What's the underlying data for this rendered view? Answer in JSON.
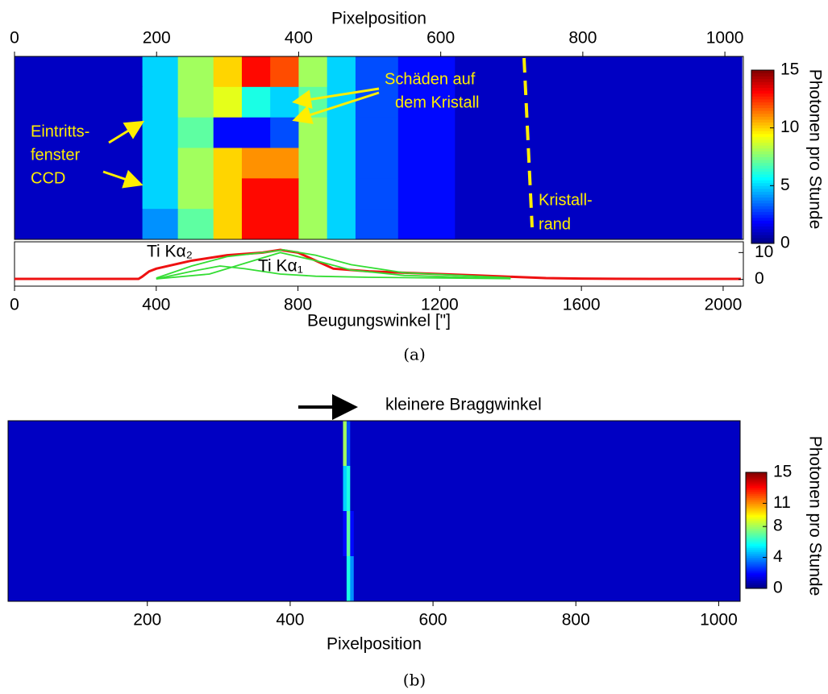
{
  "chart_data": [
    {
      "type": "heatmap",
      "xlabel": "Pixelposition",
      "xlim": [
        0,
        1026
      ],
      "xticks": [
        0,
        200,
        400,
        600,
        800,
        1000
      ],
      "xbins": [
        0,
        180,
        230,
        280,
        320,
        360,
        400,
        440,
        480,
        540,
        620,
        1024
      ],
      "z": [
        [
          1,
          5,
          8,
          10,
          13,
          12,
          8,
          5,
          3,
          2,
          1
        ],
        [
          1,
          5,
          8,
          9,
          6,
          5,
          7,
          5,
          3,
          2,
          1
        ],
        [
          1,
          5,
          7,
          2,
          2,
          3,
          8,
          5,
          3,
          2,
          1
        ],
        [
          1,
          5,
          8,
          10,
          11,
          11,
          8,
          5,
          3,
          2,
          1
        ],
        [
          1,
          5,
          8,
          10,
          13,
          13,
          8,
          5,
          3,
          2,
          1
        ],
        [
          1,
          4,
          7,
          10,
          13,
          13,
          8,
          5,
          3,
          2,
          1
        ]
      ],
      "colorbar": {
        "label": "Photonen pro Stunde",
        "colormap": "jet",
        "lim": [
          0,
          15
        ],
        "ticks": [
          0,
          5,
          10,
          15
        ]
      },
      "annotations": {
        "damage": [
          "Schäden auf",
          "dem Kristall"
        ],
        "window": [
          "Eintritts-",
          "fenster",
          "CCD"
        ],
        "edge": [
          "Kristall-",
          "rand"
        ]
      }
    },
    {
      "type": "line",
      "xlabel": "Beugungswinkel [\"]",
      "xlim": [
        0,
        2057
      ],
      "xticks": [
        0,
        400,
        800,
        1200,
        1600,
        2000
      ],
      "ylim": [
        -2.5,
        14
      ],
      "yticks": [
        0,
        10
      ],
      "series": [
        {
          "color": "#ee1111",
          "x": [
            0,
            350,
            360,
            380,
            400,
            500,
            600,
            700,
            750,
            800,
            850,
            900,
            1000,
            1100,
            1200,
            1300,
            1400,
            1500,
            1600,
            1800,
            2000,
            2050
          ],
          "y": [
            0.2,
            0.2,
            1,
            3,
            4,
            7,
            9,
            10,
            11,
            10,
            7,
            4,
            3,
            2.5,
            2,
            1.5,
            1,
            0.5,
            0.3,
            0.2,
            0.2,
            0.2
          ]
        },
        {
          "name": "Ti Kα₂",
          "color": "#33dd33",
          "x": [
            400,
            500,
            580,
            650,
            750,
            850,
            1000,
            1400
          ],
          "y": [
            0.2,
            3,
            5,
            4,
            2,
            1.2,
            0.8,
            0.3
          ]
        },
        {
          "name": "Ti Kα₁",
          "color": "#33dd33",
          "x": [
            400,
            550,
            650,
            750,
            850,
            950,
            1100,
            1400
          ],
          "y": [
            0.2,
            2,
            6,
            10,
            7,
            3.5,
            1.5,
            0.3
          ]
        },
        {
          "color": "#33dd33",
          "x": [
            400,
            500,
            600,
            700,
            760,
            850,
            950,
            1100,
            1400
          ],
          "y": [
            0.5,
            5,
            8.5,
            10,
            11,
            9,
            5.5,
            2.5,
            0.6
          ]
        }
      ]
    },
    {
      "type": "heatmap",
      "xlabel": "Pixelposition",
      "xlim": [
        5,
        1030
      ],
      "xticks": [
        200,
        400,
        600,
        800,
        1000
      ],
      "xbins": [
        5,
        474,
        479,
        484,
        489,
        1030
      ],
      "z": [
        [
          1,
          8,
          3,
          1,
          1
        ],
        [
          1,
          5,
          6,
          1,
          1
        ],
        [
          1,
          2,
          7,
          2,
          1
        ],
        [
          1,
          1,
          6,
          4,
          1
        ]
      ],
      "colorbar": {
        "label": "Photonen pro Stunde",
        "colormap": "jet",
        "lim": [
          0,
          15
        ],
        "ticks": [
          0,
          4,
          8,
          11,
          15
        ]
      },
      "annotation": "kleinere Braggwinkel"
    }
  ],
  "captions": [
    "(a)",
    "(b)"
  ]
}
